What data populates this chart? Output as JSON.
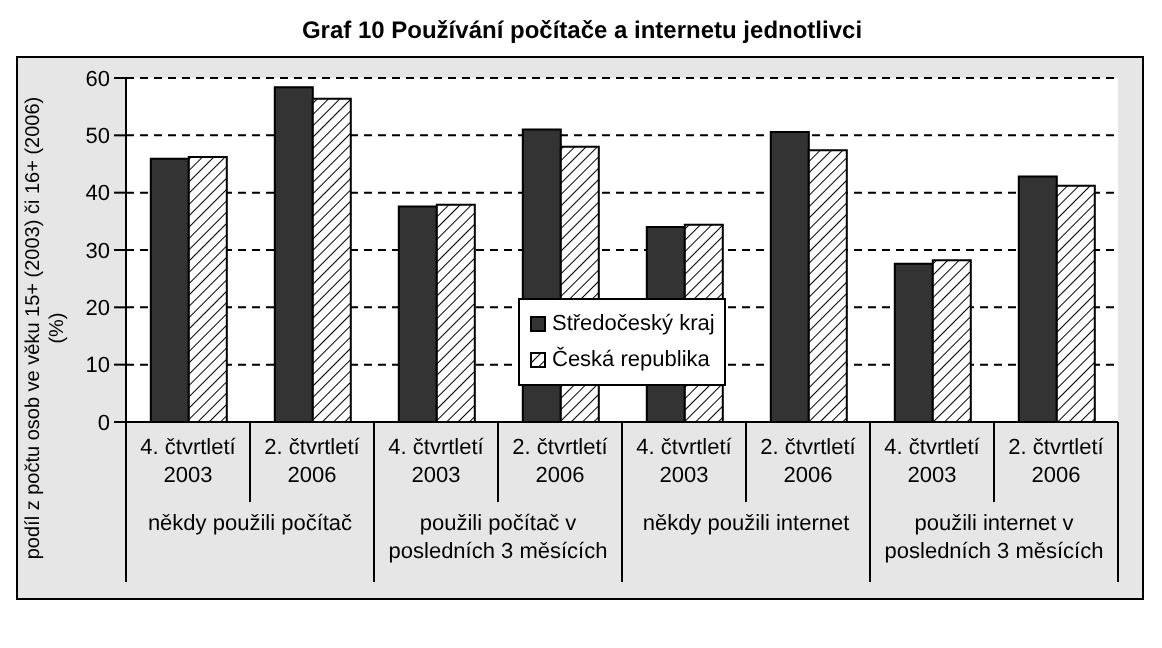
{
  "chart_data": {
    "type": "bar",
    "title": "Graf 10 Používání počítače a internetu jednotlivci",
    "ylabel": "podíl z počtu osob ve věku 15+ (2003) či 16+ (2006)\n(%)",
    "categories": [
      "4. čtvrtletí 2003",
      "2. čtvrtletí 2006",
      "4. čtvrtletí 2003",
      "2. čtvrtletí 2006",
      "4. čtvrtletí 2003",
      "2. čtvrtletí 2006",
      "4. čtvrtletí 2003",
      "2. čtvrtletí 2006"
    ],
    "annotations": [
      "někdy použili počítač",
      "použili počítač v posledních 3 měsících",
      "někdy použili internet",
      "použili internet v posledních 3 měsících"
    ],
    "series": [
      {
        "name": "Středočeský kraj",
        "color": "#333333",
        "values": [
          45.9,
          58.4,
          37.6,
          51.0,
          34.0,
          50.6,
          27.6,
          42.8
        ]
      },
      {
        "name": "Česká republika",
        "color": "#000000",
        "values": [
          46.2,
          56.4,
          37.9,
          48.0,
          34.4,
          47.4,
          28.2,
          41.2
        ]
      }
    ],
    "ylim": [
      0,
      60
    ],
    "yticks": [
      0,
      10,
      20,
      30,
      40,
      50,
      60
    ],
    "grid": "y",
    "legend": "center"
  }
}
